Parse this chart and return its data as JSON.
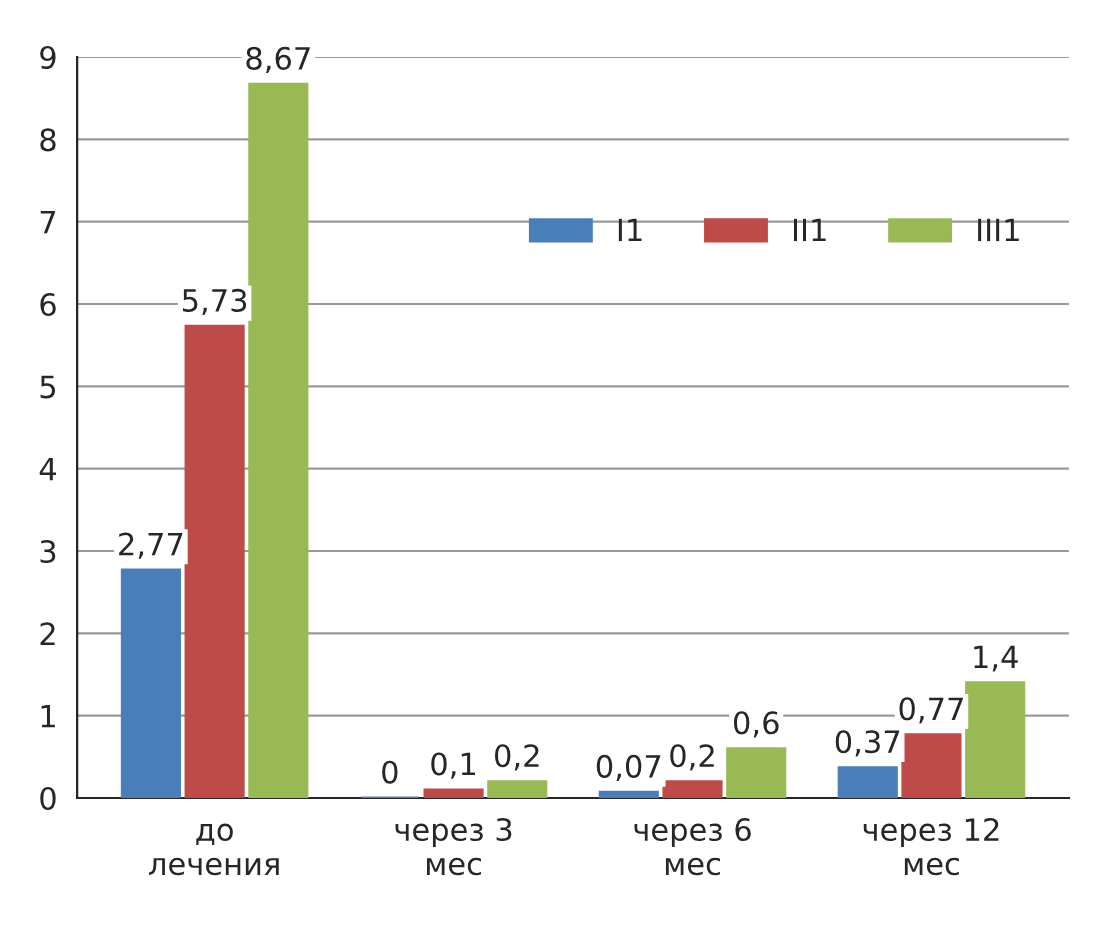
{
  "chart_data": {
    "type": "bar",
    "categories": [
      "до\nлечения",
      "через 3\nмес",
      "через 6\nмес",
      "через 12\nмес"
    ],
    "series": [
      {
        "name": "I1",
        "color": "#4a7ebb",
        "values": [
          2.77,
          0,
          0.07,
          0.37
        ],
        "value_labels": [
          "2,77",
          "0",
          "0,07",
          "0,37"
        ]
      },
      {
        "name": "II1",
        "color": "#be4b48",
        "values": [
          5.73,
          0.1,
          0.2,
          0.77
        ],
        "value_labels": [
          "5,73",
          "0,1",
          "0,2",
          "0,77"
        ]
      },
      {
        "name": "III1",
        "color": "#98b954",
        "values": [
          8.67,
          0.2,
          0.6,
          1.4
        ],
        "value_labels": [
          "8,67",
          "0,2",
          "0,6",
          "1,4"
        ]
      }
    ],
    "ylim": [
      0,
      9
    ],
    "yticks": [
      0,
      1,
      2,
      3,
      4,
      5,
      6,
      7,
      8,
      9
    ],
    "grid": "y",
    "legend": "top right"
  }
}
